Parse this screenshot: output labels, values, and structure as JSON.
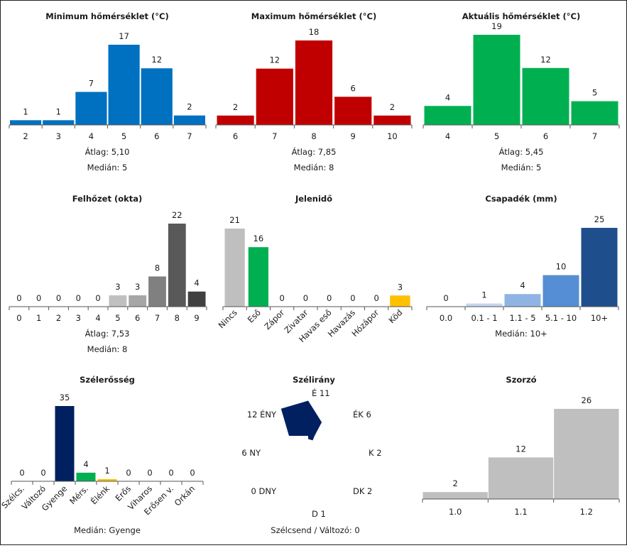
{
  "chart_data": [
    {
      "id": "min",
      "type": "bar",
      "title": "Minimum hőmérséklet (°C)",
      "categories": [
        "2",
        "3",
        "4",
        "5",
        "6",
        "7"
      ],
      "values": [
        1,
        1,
        7,
        17,
        12,
        2
      ],
      "colors": [
        "#0070c0"
      ],
      "ylim": [
        0,
        17
      ],
      "stats": [
        "Átlag:  5,10",
        "Medián:  5"
      ]
    },
    {
      "id": "max",
      "type": "bar",
      "title": "Maximum hőmérséklet (°C)",
      "categories": [
        "6",
        "7",
        "8",
        "9",
        "10"
      ],
      "values": [
        2,
        12,
        18,
        6,
        2
      ],
      "colors": [
        "#c00000"
      ],
      "ylim": [
        0,
        18
      ],
      "stats": [
        "Átlag:  7,85",
        "Medián:  8"
      ]
    },
    {
      "id": "act",
      "type": "bar",
      "title": "Aktuális hőmérséklet (°C)",
      "categories": [
        "4",
        "5",
        "6",
        "7"
      ],
      "values": [
        4,
        19,
        12,
        5
      ],
      "colors": [
        "#00b050"
      ],
      "ylim": [
        0,
        19
      ],
      "stats": [
        "Átlag:  5,45",
        "Medián:  5"
      ]
    },
    {
      "id": "cloud",
      "type": "bar",
      "title": "Felhőzet (okta)",
      "categories": [
        "0",
        "1",
        "2",
        "3",
        "4",
        "5",
        "6",
        "7",
        "8",
        "9"
      ],
      "values": [
        0,
        0,
        0,
        0,
        0,
        3,
        3,
        8,
        22,
        4
      ],
      "colors": [
        "#d0d0d0",
        "#d0d0d0",
        "#c8c8c8",
        "#c0c0c0",
        "#b8b8b8",
        "#c0c0c0",
        "#a6a6a6",
        "#808080",
        "#595959",
        "#404040"
      ],
      "ylim": [
        0,
        22
      ],
      "stats": [
        "Átlag:  7,53",
        "Medián:  8"
      ]
    },
    {
      "id": "weather",
      "type": "bar",
      "title": "Jelenidő",
      "categories": [
        "Nincs",
        "Eső",
        "Zápor",
        "Zivatar",
        "Havas eső",
        "Havazás",
        "Hózápor",
        "Köd"
      ],
      "values": [
        21,
        16,
        0,
        0,
        0,
        0,
        0,
        3
      ],
      "colors": [
        "#bfbfbf",
        "#00b050",
        "#bfbfbf",
        "#bfbfbf",
        "#bfbfbf",
        "#bfbfbf",
        "#bfbfbf",
        "#ffc000"
      ],
      "ylim": [
        0,
        21
      ],
      "rotate_labels": true,
      "stats": []
    },
    {
      "id": "precip",
      "type": "bar",
      "title": "Csapadék (mm)",
      "categories": [
        "0.0",
        "0.1 - 1",
        "1.1 - 5",
        "5.1 - 10",
        "10+"
      ],
      "values": [
        0,
        1,
        4,
        10,
        25
      ],
      "colors": [
        "#dae3f3",
        "#c5d5ee",
        "#8fb4e3",
        "#558ed5",
        "#1f4e8c"
      ],
      "ylim": [
        0,
        25
      ],
      "stats": [
        "Medián:  10+"
      ]
    },
    {
      "id": "wind",
      "type": "bar",
      "title": "Szélerősség",
      "categories": [
        "Szélcs.",
        "Változó",
        "Gyenge",
        "Mérs.",
        "Élénk",
        "Erős",
        "Viharos",
        "Erősen v.",
        "Orkán"
      ],
      "values": [
        0,
        0,
        35,
        4,
        1,
        0,
        0,
        0,
        0
      ],
      "colors": [
        "#bfbfbf",
        "#bfbfbf",
        "#002060",
        "#00b050",
        "#ffc000",
        "#bfbfbf",
        "#bfbfbf",
        "#bfbfbf",
        "#bfbfbf"
      ],
      "ylim": [
        0,
        35
      ],
      "rotate_labels": true,
      "stats": [
        "Medián:  Gyenge"
      ]
    },
    {
      "id": "winddir",
      "type": "radar",
      "title": "Szélirány",
      "directions": [
        {
          "name": "É",
          "value": 11,
          "label": "É  11"
        },
        {
          "name": "ÉK",
          "value": 6,
          "label": "ÉK  6"
        },
        {
          "name": "K",
          "value": 2,
          "label": "K  2"
        },
        {
          "name": "DK",
          "value": 2,
          "label": "DK  2"
        },
        {
          "name": "D",
          "value": 1,
          "label": "D  1"
        },
        {
          "name": "DNY",
          "value": 0,
          "label": "0  DNY"
        },
        {
          "name": "NY",
          "value": 6,
          "label": "6  NY"
        },
        {
          "name": "ÉNY",
          "value": 12,
          "label": "12  ÉNY"
        }
      ],
      "rmax": 12,
      "color": "#002060",
      "note": "Szélcsend / Változó: 0"
    },
    {
      "id": "mult",
      "type": "bar",
      "title": "Szorzó",
      "categories": [
        "1.0",
        "1.1",
        "1.2"
      ],
      "values": [
        2,
        12,
        26
      ],
      "colors": [
        "#bfbfbf"
      ],
      "ylim": [
        0,
        26
      ],
      "stats": []
    }
  ]
}
